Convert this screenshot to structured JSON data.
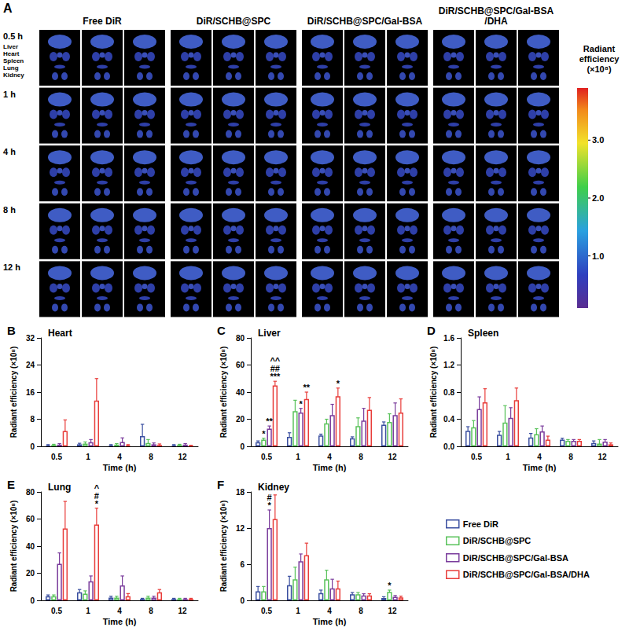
{
  "panel_a": {
    "letter": "A",
    "columns": [
      "Free DiR",
      "DiR/SCHB@SPC",
      "DiR/SCHB@SPC/Gal-BSA",
      "DiR/SCHB@SPC/Gal-BSA/DHA"
    ],
    "rows": [
      "0.5 h",
      "1 h",
      "4 h",
      "8 h",
      "12 h"
    ],
    "organs": [
      "Liver",
      "Heart",
      "Spleen",
      "Lung",
      "Kidney"
    ],
    "replicates": 3,
    "colorbar": {
      "title": "Radiant efficiency (×10⁸)",
      "range": [
        0.1,
        3.9
      ],
      "ticks": [
        {
          "value": 1,
          "label": "1.0"
        },
        {
          "value": 2,
          "label": "2.0"
        },
        {
          "value": 3,
          "label": "3.0"
        }
      ]
    }
  },
  "chart_data": [
    {
      "letter": "B",
      "type": "bar",
      "title": "Heart",
      "x_label": "Time (h)",
      "y_label": "Radiant efficiency (×10⁸)",
      "grid": false,
      "categories": [
        "0.5",
        "1",
        "4",
        "8",
        "12"
      ],
      "ylim": [
        0,
        32
      ],
      "yticks": [
        0,
        8,
        16,
        24,
        32
      ],
      "series": [
        {
          "name": "Free DiR",
          "color": "#3a4fa0",
          "values": [
            0.3,
            0.6,
            0.3,
            3.0,
            0.3
          ],
          "errors": [
            0.2,
            0.3,
            0.2,
            3.5,
            0.2
          ]
        },
        {
          "name": "DiR/SCHB@SPC",
          "color": "#59c25a",
          "values": [
            0.4,
            0.8,
            0.5,
            1.0,
            0.4
          ],
          "errors": [
            0.2,
            0.5,
            0.3,
            1.0,
            0.2
          ]
        },
        {
          "name": "DiR/SCHB@SPC/Gal-BSA",
          "color": "#7a3c9c",
          "values": [
            0.5,
            1.2,
            1.3,
            0.6,
            0.5
          ],
          "errors": [
            0.3,
            0.8,
            1.2,
            0.4,
            0.3
          ]
        },
        {
          "name": "DiR/SCHB@SPC/Gal-BSA/DHA",
          "color": "#e83d3a",
          "values": [
            4.5,
            13.5,
            0.3,
            0.4,
            0.2
          ],
          "errors": [
            3.3,
            6.5,
            0.2,
            0.3,
            0.1
          ]
        }
      ],
      "annotations": []
    },
    {
      "letter": "C",
      "type": "bar",
      "title": "Liver",
      "x_label": "Time (h)",
      "y_label": "Radiant efficiency (×10⁸)",
      "grid": false,
      "categories": [
        "0.5",
        "1",
        "4",
        "8",
        "12"
      ],
      "ylim": [
        0,
        80
      ],
      "yticks": [
        0,
        20,
        40,
        60,
        80
      ],
      "series": [
        {
          "name": "Free DiR",
          "color": "#3a4fa0",
          "values": [
            3,
            7,
            8,
            6,
            16
          ],
          "errors": [
            1,
            3,
            1,
            1,
            2
          ]
        },
        {
          "name": "DiR/SCHB@SPC",
          "color": "#59c25a",
          "values": [
            5,
            26,
            17,
            15,
            18
          ],
          "errors": [
            1,
            8,
            3,
            6,
            6
          ]
        },
        {
          "name": "DiR/SCHB@SPC/Gal-BSA",
          "color": "#7a3c9c",
          "values": [
            13,
            25,
            23,
            19,
            23
          ],
          "errors": [
            2,
            3,
            8,
            9,
            9
          ]
        },
        {
          "name": "DiR/SCHB@SPC/Gal-BSA/DHA",
          "color": "#e83d3a",
          "values": [
            45,
            35,
            37,
            27,
            25
          ],
          "errors": [
            3,
            5,
            6,
            9,
            10
          ]
        }
      ],
      "annotations": [
        {
          "category": "0.5",
          "series": "DiR/SCHB@SPC",
          "text": [
            "*"
          ]
        },
        {
          "category": "0.5",
          "series": "DiR/SCHB@SPC/Gal-BSA",
          "text": [
            "**"
          ]
        },
        {
          "category": "0.5",
          "series": "DiR/SCHB@SPC/Gal-BSA/DHA",
          "text": [
            "^^",
            "##",
            "***"
          ]
        },
        {
          "category": "1",
          "series": "DiR/SCHB@SPC/Gal-BSA",
          "text": [
            "*"
          ]
        },
        {
          "category": "1",
          "series": "DiR/SCHB@SPC/Gal-BSA/DHA",
          "text": [
            "**"
          ]
        },
        {
          "category": "4",
          "series": "DiR/SCHB@SPC/Gal-BSA/DHA",
          "text": [
            "*"
          ]
        }
      ]
    },
    {
      "letter": "D",
      "type": "bar",
      "title": "Spleen",
      "x_label": "Time (h)",
      "y_label": "Radiant efficiency (×10⁸)",
      "grid": false,
      "categories": [
        "0.5",
        "1",
        "4",
        "8",
        "12"
      ],
      "ylim": [
        0,
        1.6
      ],
      "yticks": [
        {
          "value": 0,
          "label": "0.0"
        },
        0.4,
        0.8,
        1.2,
        1.6
      ],
      "series": [
        {
          "name": "Free DiR",
          "color": "#3a4fa0",
          "values": [
            0.23,
            0.17,
            0.13,
            0.1,
            0.05
          ],
          "errors": [
            0.06,
            0.05,
            0.06,
            0.02,
            0.03
          ]
        },
        {
          "name": "DiR/SCHB@SPC",
          "color": "#59c25a",
          "values": [
            0.28,
            0.35,
            0.18,
            0.08,
            0.04
          ],
          "errors": [
            0.1,
            0.25,
            0.08,
            0.02,
            0.06
          ]
        },
        {
          "name": "DiR/SCHB@SPC/Gal-BSA",
          "color": "#7a3c9c",
          "values": [
            0.55,
            0.42,
            0.22,
            0.08,
            0.07
          ],
          "errors": [
            0.18,
            0.15,
            0.08,
            0.02,
            0.03
          ]
        },
        {
          "name": "DiR/SCHB@SPC/Gal-BSA/DHA",
          "color": "#e83d3a",
          "values": [
            0.65,
            0.68,
            0.1,
            0.08,
            0.03
          ],
          "errors": [
            0.2,
            0.18,
            0.05,
            0.02,
            0.02
          ]
        }
      ],
      "annotations": []
    },
    {
      "letter": "E",
      "type": "bar",
      "title": "Lung",
      "x_label": "Time (h)",
      "y_label": "Radiant efficiency (×10⁸)",
      "grid": false,
      "categories": [
        "0.5",
        "1",
        "4",
        "8",
        "12"
      ],
      "ylim": [
        0,
        80
      ],
      "yticks": [
        0,
        20,
        40,
        60,
        80
      ],
      "series": [
        {
          "name": "Free DiR",
          "color": "#3a4fa0",
          "values": [
            3,
            6,
            2,
            1,
            1
          ],
          "errors": [
            1,
            2,
            1,
            0.5,
            0.5
          ]
        },
        {
          "name": "DiR/SCHB@SPC",
          "color": "#59c25a",
          "values": [
            3,
            5,
            2,
            2,
            1
          ],
          "errors": [
            1,
            2,
            1,
            1,
            0.5
          ]
        },
        {
          "name": "DiR/SCHB@SPC/Gal-BSA",
          "color": "#7a3c9c",
          "values": [
            27,
            14,
            11,
            2,
            1
          ],
          "errors": [
            8,
            4,
            7,
            1,
            0.5
          ]
        },
        {
          "name": "DiR/SCHB@SPC/Gal-BSA/DHA",
          "color": "#e83d3a",
          "values": [
            53,
            56,
            3,
            6,
            1
          ],
          "errors": [
            20,
            12,
            2,
            2,
            0.5
          ]
        }
      ],
      "annotations": [
        {
          "category": "1",
          "series": "DiR/SCHB@SPC/Gal-BSA/DHA",
          "text": [
            "^",
            "#",
            "*"
          ]
        }
      ]
    },
    {
      "letter": "F",
      "type": "bar",
      "title": "Kidney",
      "x_label": "Time (h)",
      "y_label": "Radiant efficiency (×10⁸)",
      "grid": false,
      "legend": "right",
      "categories": [
        "0.5",
        "1",
        "4",
        "8",
        "12"
      ],
      "ylim": [
        0,
        18
      ],
      "yticks": [
        0,
        6,
        12,
        18
      ],
      "series": [
        {
          "name": "Free DiR",
          "color": "#3a4fa0",
          "values": [
            1.5,
            2.5,
            1.2,
            1.0,
            0.4
          ],
          "errors": [
            0.8,
            1.5,
            0.5,
            0.3,
            0.2
          ]
        },
        {
          "name": "DiR/SCHB@SPC",
          "color": "#59c25a",
          "values": [
            1.5,
            3.5,
            3.5,
            1.0,
            1.4
          ],
          "errors": [
            0.8,
            2.0,
            1.5,
            0.3,
            0.3
          ]
        },
        {
          "name": "DiR/SCHB@SPC/Gal-BSA",
          "color": "#7a3c9c",
          "values": [
            12,
            6.5,
            2.0,
            0.8,
            0.6
          ],
          "errors": [
            3,
            1.2,
            1.5,
            0.3,
            0.2
          ]
        },
        {
          "name": "DiR/SCHB@SPC/Gal-BSA/DHA",
          "color": "#e83d3a",
          "values": [
            13.5,
            7.5,
            2.0,
            0.8,
            0.5
          ],
          "errors": [
            4,
            2,
            1.2,
            0.3,
            0.2
          ]
        }
      ],
      "annotations": [
        {
          "category": "0.5",
          "series": "DiR/SCHB@SPC/Gal-BSA",
          "text": [
            "#",
            "*"
          ]
        },
        {
          "category": "12",
          "series": "DiR/SCHB@SPC",
          "text": [
            "*"
          ]
        }
      ]
    }
  ]
}
